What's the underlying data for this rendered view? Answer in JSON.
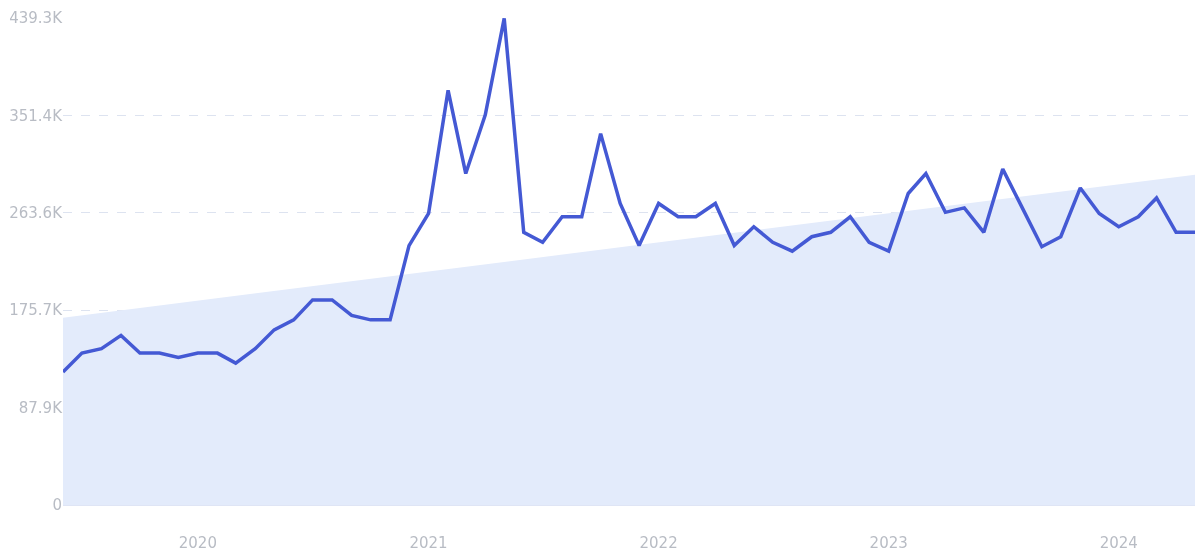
{
  "chart_data": {
    "type": "line",
    "x": [
      "2019-06",
      "2019-07",
      "2019-08",
      "2019-09",
      "2019-10",
      "2019-11",
      "2019-12",
      "2020-01",
      "2020-02",
      "2020-03",
      "2020-04",
      "2020-05",
      "2020-06",
      "2020-07",
      "2020-08",
      "2020-09",
      "2020-10",
      "2020-11",
      "2020-12",
      "2021-01",
      "2021-02",
      "2021-03",
      "2021-04",
      "2021-05",
      "2021-06",
      "2021-07",
      "2021-08",
      "2021-09",
      "2021-10",
      "2021-11",
      "2021-12",
      "2022-01",
      "2022-02",
      "2022-03",
      "2022-04",
      "2022-05",
      "2022-06",
      "2022-07",
      "2022-08",
      "2022-09",
      "2022-10",
      "2022-11",
      "2022-12",
      "2023-01",
      "2023-02",
      "2023-03",
      "2023-04",
      "2023-05",
      "2023-06",
      "2023-07",
      "2023-08",
      "2023-09",
      "2023-10",
      "2023-11",
      "2023-12",
      "2024-01",
      "2024-02",
      "2024-03",
      "2024-04",
      "2024-05"
    ],
    "series": [
      {
        "type": "area",
        "color": "#e3ebfb",
        "x": [
          "2019-06",
          "2024-05"
        ],
        "values": [
          169000,
          298000
        ]
      },
      {
        "color": "#4459d4",
        "values": [
          120000,
          137000,
          141000,
          153000,
          137000,
          137000,
          133000,
          137000,
          137000,
          128000,
          141000,
          158000,
          167000,
          185000,
          185000,
          171000,
          167000,
          167000,
          234000,
          263000,
          374000,
          299000,
          352000,
          439000,
          246000,
          237000,
          260000,
          260000,
          335000,
          272000,
          234000,
          272000,
          260000,
          260000,
          272000,
          234000,
          251000,
          237000,
          229000,
          242000,
          246000,
          260000,
          237000,
          229000,
          281000,
          299000,
          264000,
          268000,
          246000,
          303000,
          268000,
          233000,
          242000,
          286000,
          263000,
          251000,
          260000,
          277000,
          246000,
          246000
        ]
      }
    ],
    "xlim": [
      "2019-06",
      "2024-05"
    ],
    "xticks": [
      {
        "value": "2020-01",
        "label": "2020"
      },
      {
        "value": "2021-01",
        "label": "2021"
      },
      {
        "value": "2022-01",
        "label": "2022"
      },
      {
        "value": "2023-01",
        "label": "2023"
      },
      {
        "value": "2024-01",
        "label": "2024"
      }
    ],
    "ylim": [
      0,
      439300
    ],
    "yticks": [
      0,
      {
        "value": 87900,
        "label": "87.9K"
      },
      {
        "value": 175700,
        "label": "175.7K"
      },
      {
        "value": 263600,
        "label": "263.6K"
      },
      {
        "value": 351400,
        "label": "351.4K"
      },
      {
        "value": 439300,
        "label": "439.3K"
      }
    ],
    "grid": "y",
    "marker": "none",
    "line_style": "solid"
  }
}
